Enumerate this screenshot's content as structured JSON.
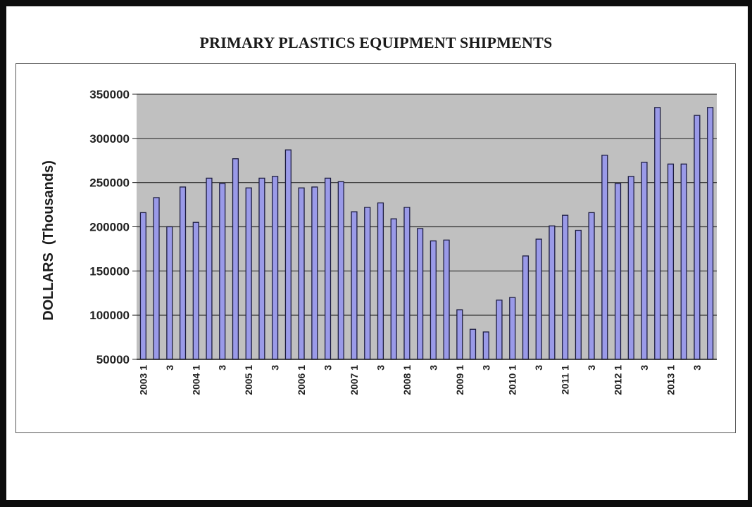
{
  "chart_data": {
    "type": "bar",
    "title": "PRIMARY PLASTICS EQUIPMENT SHIPMENTS",
    "xlabel": "",
    "ylabel": "DOLLARS  (Thousands)",
    "ylim": [
      50000,
      350000
    ],
    "yticks": [
      50000,
      100000,
      150000,
      200000,
      250000,
      300000,
      350000
    ],
    "ytick_labels": [
      "50000",
      "100000",
      "150000",
      "200000",
      "250000",
      "300000",
      "350000"
    ],
    "grid": true,
    "legend": "none",
    "colors": {
      "bar_fill": "#9a9ae8",
      "bar_stroke": "#1c1c40",
      "plot_background": "#c0c0c0",
      "gridline": "#333333"
    },
    "categories": [
      "2003 1",
      "",
      "3",
      "",
      "2004 1",
      "",
      "3",
      "",
      "2005 1",
      "",
      "3",
      "",
      "2006 1",
      "",
      "3",
      "",
      "2007 1",
      "",
      "3",
      "",
      "2008 1",
      "",
      "3",
      "",
      "2009 1",
      "",
      "3",
      "",
      "2010 1",
      "",
      "3",
      "",
      "2011 1",
      "",
      "3",
      "",
      "2012 1",
      "",
      "3",
      "",
      "2013 1",
      "",
      "3",
      ""
    ],
    "values": [
      216000,
      233000,
      200000,
      245000,
      205000,
      255000,
      249000,
      277000,
      244000,
      255000,
      257000,
      287000,
      244000,
      245000,
      255000,
      251000,
      217000,
      222000,
      227000,
      209000,
      222000,
      198000,
      184000,
      185000,
      106000,
      84000,
      81000,
      117000,
      120000,
      167000,
      186000,
      201000,
      213000,
      196000,
      216000,
      281000,
      249000,
      257000,
      273000,
      335000,
      271000,
      271000,
      326000,
      335000
    ]
  }
}
